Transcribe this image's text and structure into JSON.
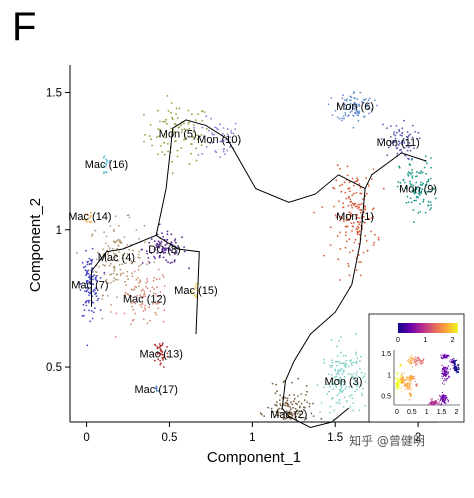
{
  "figure": {
    "panel_letter": "F",
    "watermark": "知乎 @曾健明"
  },
  "chart_data": {
    "type": "scatter",
    "title": "",
    "xlabel": "Component_1",
    "ylabel": "Component_2",
    "xlim": [
      -0.1,
      2.12
    ],
    "ylim": [
      0.3,
      1.6
    ],
    "xticks": [
      0,
      0.5,
      1,
      1.5,
      2
    ],
    "xtick_labels": [
      "0",
      "0.5",
      "1",
      "1.5",
      "2"
    ],
    "yticks": [
      0.5,
      1,
      1.5
    ],
    "ytick_labels": [
      "0.5",
      "1",
      "1.5"
    ],
    "grid": false,
    "legend": "none",
    "clusters": [
      {
        "label": "Mon (5)",
        "color": "#9a9a3c",
        "x": 0.55,
        "y": 1.35,
        "n": 90,
        "sx": 0.18,
        "sy": 0.1
      },
      {
        "label": "Mon (10)",
        "color": "#8e7bd0",
        "x": 0.8,
        "y": 1.33,
        "n": 50,
        "sx": 0.12,
        "sy": 0.07
      },
      {
        "label": "Mac (16)",
        "color": "#62bcd4",
        "x": 0.12,
        "y": 1.24,
        "n": 15,
        "sx": 0.03,
        "sy": 0.05
      },
      {
        "label": "Mac (14)",
        "color": "#f0a23b",
        "x": 0.02,
        "y": 1.05,
        "n": 10,
        "sx": 0.03,
        "sy": 0.03
      },
      {
        "label": "Mac (4)",
        "color": "#b59a76",
        "x": 0.18,
        "y": 0.9,
        "n": 130,
        "sx": 0.15,
        "sy": 0.12
      },
      {
        "label": "DC (8)",
        "color": "#57288f",
        "x": 0.47,
        "y": 0.93,
        "n": 90,
        "sx": 0.12,
        "sy": 0.05
      },
      {
        "label": "Mac (12)",
        "color": "#d88a78",
        "x": 0.35,
        "y": 0.75,
        "n": 90,
        "sx": 0.14,
        "sy": 0.1
      },
      {
        "label": "Mac (15)",
        "color": "#f0d050",
        "x": 0.66,
        "y": 0.78,
        "n": 15,
        "sx": 0.02,
        "sy": 0.03
      },
      {
        "label": "Mac (7)",
        "color": "#4848c8",
        "x": 0.02,
        "y": 0.8,
        "n": 110,
        "sx": 0.05,
        "sy": 0.1
      },
      {
        "label": "Mac (13)",
        "color": "#b03030",
        "x": 0.45,
        "y": 0.55,
        "n": 40,
        "sx": 0.04,
        "sy": 0.05
      },
      {
        "label": "Mac (17)",
        "color": "#4a7cb8",
        "x": 0.42,
        "y": 0.42,
        "n": 6,
        "sx": 0.01,
        "sy": 0.02
      },
      {
        "label": "Mon (6)",
        "color": "#6a8fcf",
        "x": 1.62,
        "y": 1.45,
        "n": 90,
        "sx": 0.1,
        "sy": 0.05
      },
      {
        "label": "Mon (11)",
        "color": "#5a5ab0",
        "x": 1.88,
        "y": 1.32,
        "n": 70,
        "sx": 0.1,
        "sy": 0.06
      },
      {
        "label": "Mon (9)",
        "color": "#1a9a8a",
        "x": 2.0,
        "y": 1.15,
        "n": 110,
        "sx": 0.1,
        "sy": 0.1
      },
      {
        "label": "Mon (1)",
        "color": "#d85a3a",
        "x": 1.62,
        "y": 1.05,
        "n": 170,
        "sx": 0.12,
        "sy": 0.15
      },
      {
        "label": "Mon (3)",
        "color": "#7fd0c8",
        "x": 1.55,
        "y": 0.45,
        "n": 160,
        "sx": 0.12,
        "sy": 0.12
      },
      {
        "label": "Mac (2)",
        "color": "#7a6040",
        "x": 1.22,
        "y": 0.33,
        "n": 160,
        "sx": 0.12,
        "sy": 0.08
      }
    ],
    "trajectory": [
      [
        [
          0.03,
          0.72
        ],
        [
          0.03,
          0.85
        ],
        [
          0.12,
          0.92
        ],
        [
          0.22,
          0.93
        ],
        [
          0.42,
          0.98
        ],
        [
          0.55,
          0.93
        ],
        [
          0.68,
          0.92
        ],
        [
          0.66,
          0.62
        ]
      ],
      [
        [
          0.42,
          0.98
        ],
        [
          0.48,
          1.15
        ],
        [
          0.52,
          1.37
        ],
        [
          0.6,
          1.4
        ],
        [
          0.72,
          1.38
        ],
        [
          0.85,
          1.33
        ],
        [
          1.02,
          1.15
        ],
        [
          1.22,
          1.1
        ],
        [
          1.38,
          1.13
        ],
        [
          1.52,
          1.2
        ],
        [
          1.68,
          1.15
        ],
        [
          1.72,
          1.2
        ],
        [
          1.9,
          1.28
        ],
        [
          2.05,
          1.25
        ]
      ],
      [
        [
          1.68,
          1.15
        ],
        [
          1.65,
          0.95
        ],
        [
          1.6,
          0.8
        ],
        [
          1.5,
          0.7
        ],
        [
          1.35,
          0.62
        ],
        [
          1.25,
          0.52
        ],
        [
          1.2,
          0.45
        ],
        [
          1.18,
          0.35
        ],
        [
          1.22,
          0.32
        ],
        [
          1.35,
          0.28
        ],
        [
          1.48,
          0.3
        ],
        [
          1.58,
          0.35
        ]
      ]
    ],
    "inset": {
      "colorbar_ticks": [
        "0",
        "1",
        "2"
      ],
      "colorbar_range": [
        0,
        2.2
      ],
      "colorbar_colors": [
        "#0d0887",
        "#6a00a8",
        "#b12a90",
        "#e16462",
        "#fca636",
        "#f0f921"
      ],
      "xticks": [
        "0",
        "0.5",
        "1",
        "1.5",
        "2"
      ],
      "yticks": [
        "1.5",
        "1",
        "0.5"
      ],
      "xlim": [
        -0.1,
        2.12
      ],
      "ylim": [
        0.3,
        1.6
      ]
    }
  }
}
